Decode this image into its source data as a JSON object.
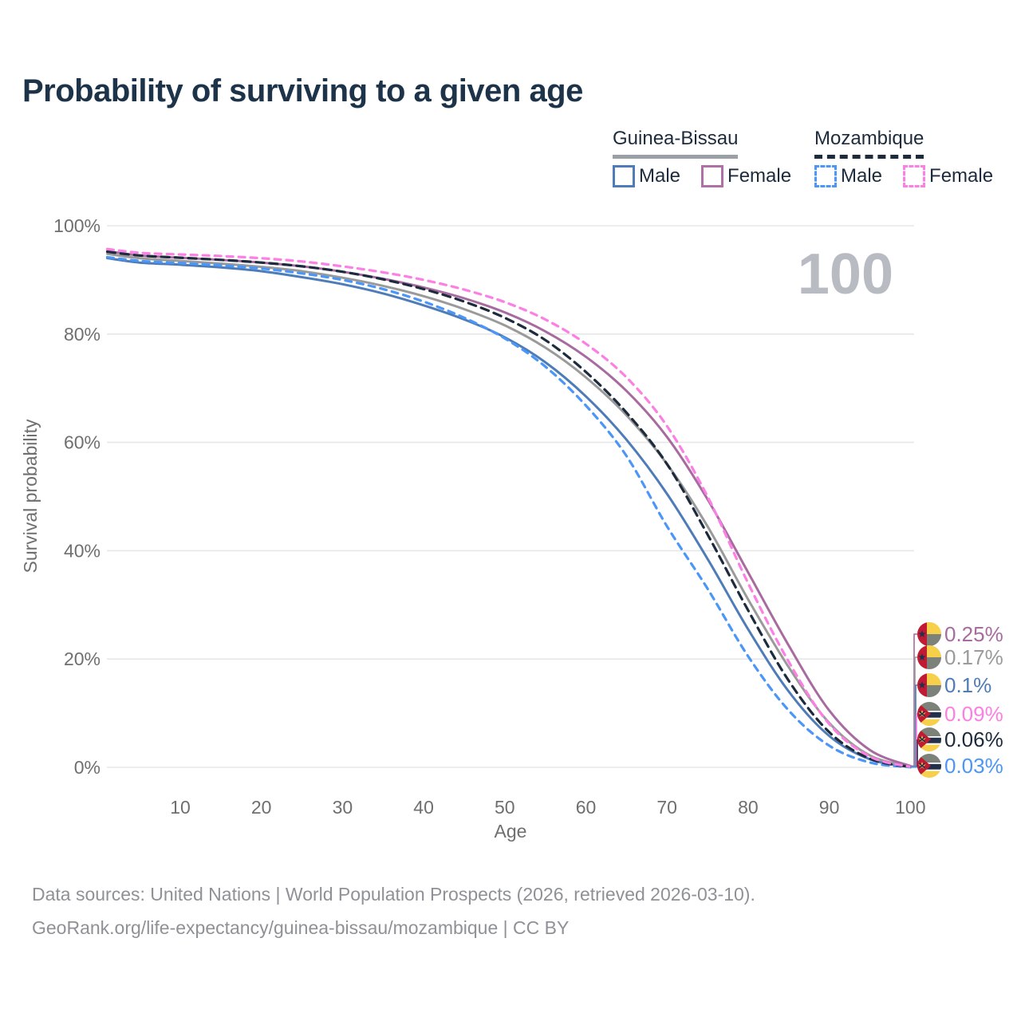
{
  "header": {
    "title": "Probability of surviving to a given age"
  },
  "hover": {
    "age_watermark": "100",
    "watermark_color": "#b8bbc1"
  },
  "legend": {
    "groups": [
      {
        "country": "Guinea-Bissau",
        "line_style": "solid",
        "line_color": "#9aa0a6",
        "items": [
          {
            "label": "Male",
            "color": "#4d7cb8"
          },
          {
            "label": "Female",
            "color": "#b06fa6"
          }
        ]
      },
      {
        "country": "Mozambique",
        "line_style": "dashed",
        "line_color": "#1d2b3d",
        "items": [
          {
            "label": "Male",
            "color": "#4b96f7"
          },
          {
            "label": "Female",
            "color": "#fc7fe4"
          }
        ]
      }
    ]
  },
  "chart_data": {
    "type": "line",
    "title": "Probability of surviving to a given age",
    "xlabel": "Age",
    "ylabel": "Survival probability",
    "xlim": [
      1,
      100
    ],
    "ylim": [
      0,
      100
    ],
    "grid": "horizontal-only",
    "x_ticks": [
      10,
      20,
      30,
      40,
      50,
      60,
      70,
      80,
      90,
      100
    ],
    "y_ticks": [
      {
        "value": 0,
        "label": "0%"
      },
      {
        "value": 20,
        "label": "20%"
      },
      {
        "value": 40,
        "label": "40%"
      },
      {
        "value": 60,
        "label": "60%"
      },
      {
        "value": 80,
        "label": "80%"
      },
      {
        "value": 100,
        "label": "100%"
      }
    ],
    "x": [
      1,
      5,
      10,
      15,
      20,
      25,
      30,
      35,
      40,
      45,
      50,
      55,
      60,
      65,
      70,
      75,
      80,
      85,
      90,
      95,
      100
    ],
    "series": [
      {
        "name": "Guinea-Bissau Male",
        "country": "guinea-bissau",
        "sex": "male",
        "color": "#4d7cb8",
        "dash": "none",
        "end_label": "0.1%",
        "values": [
          94.0,
          93.2,
          92.8,
          92.3,
          91.6,
          90.5,
          89.2,
          87.5,
          85.3,
          82.7,
          79.4,
          74.8,
          68.5,
          60.5,
          50.5,
          38.5,
          25.5,
          14.0,
          5.8,
          1.5,
          0.1
        ]
      },
      {
        "name": "Guinea-Bissau",
        "country": "guinea-bissau",
        "sex": "all",
        "color": "#9a9a9a",
        "dash": "none",
        "end_label": "0.17%",
        "values": [
          94.8,
          94.0,
          93.5,
          93.0,
          92.4,
          91.6,
          90.4,
          88.9,
          87.0,
          84.6,
          81.6,
          77.5,
          72.0,
          65.0,
          56.0,
          44.5,
          31.0,
          18.5,
          8.2,
          2.2,
          0.17
        ]
      },
      {
        "name": "Guinea-Bissau Female",
        "country": "guinea-bissau",
        "sex": "female",
        "color": "#a86ba0",
        "dash": "none",
        "end_label": "0.25%",
        "values": [
          95.3,
          94.5,
          94.1,
          93.7,
          93.2,
          92.5,
          91.5,
          90.2,
          88.6,
          86.6,
          84.0,
          80.5,
          75.8,
          69.5,
          61.0,
          49.5,
          36.0,
          22.5,
          10.5,
          3.2,
          0.25
        ]
      },
      {
        "name": "Mozambique Male",
        "country": "mozambique",
        "sex": "male",
        "color": "#4b96f7",
        "dash": "8 7",
        "end_label": "0.03%",
        "values": [
          94.2,
          93.5,
          93.1,
          92.7,
          92.1,
          91.2,
          90.0,
          88.3,
          86.0,
          83.0,
          79.2,
          74.0,
          66.8,
          57.5,
          44.5,
          33.0,
          20.5,
          10.5,
          4.0,
          0.9,
          0.03
        ]
      },
      {
        "name": "Mozambique",
        "country": "mozambique",
        "sex": "all",
        "color": "#1d2b3d",
        "dash": "10 7",
        "end_label": "0.06%",
        "values": [
          95.2,
          94.5,
          94.1,
          93.7,
          93.2,
          92.5,
          91.5,
          90.1,
          88.3,
          86.0,
          83.0,
          78.9,
          73.0,
          65.5,
          56.0,
          43.0,
          29.0,
          16.0,
          6.5,
          1.6,
          0.06
        ]
      },
      {
        "name": "Mozambique Female",
        "country": "mozambique",
        "sex": "female",
        "color": "#fc7fe4",
        "dash": "8 7",
        "end_label": "0.09%",
        "values": [
          95.7,
          95.0,
          94.7,
          94.4,
          94.0,
          93.4,
          92.5,
          91.4,
          90.0,
          88.2,
          85.9,
          82.7,
          78.2,
          72.0,
          63.0,
          50.0,
          34.0,
          19.5,
          8.0,
          2.0,
          0.09
        ]
      }
    ],
    "end_labels": [
      {
        "text": "0.25%",
        "color": "#a86ba0",
        "flag": "guinea-bissau",
        "series": "Guinea-Bissau Female"
      },
      {
        "text": "0.17%",
        "color": "#9a9a9a",
        "flag": "guinea-bissau",
        "series": "Guinea-Bissau"
      },
      {
        "text": "0.1%",
        "color": "#4d7cb8",
        "flag": "guinea-bissau",
        "series": "Guinea-Bissau Male"
      },
      {
        "text": "0.09%",
        "color": "#fc7fe4",
        "flag": "mozambique",
        "series": "Mozambique Female"
      },
      {
        "text": "0.06%",
        "color": "#1d2b3d",
        "flag": "mozambique",
        "series": "Mozambique"
      },
      {
        "text": "0.03%",
        "color": "#4b96f7",
        "flag": "mozambique",
        "series": "Mozambique Male"
      }
    ],
    "flag_colors": {
      "red": "#c11a33",
      "yellow": "#f6cf4b",
      "green_muted": "#7c8179",
      "navy": "#22304a",
      "white": "#ffffff"
    },
    "axis_text_color": "#6f6f6f",
    "gridline_color": "#e7e7e7"
  },
  "footer": {
    "line1": "Data sources: United Nations | World Population Prospects (2026, retrieved 2026-03-10).",
    "line2": "GeoRank.org/life-expectancy/guinea-bissau/mozambique | CC BY"
  }
}
